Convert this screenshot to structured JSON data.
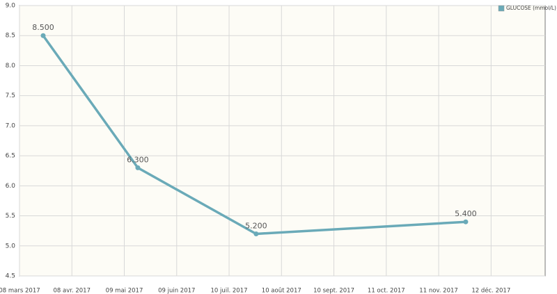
{
  "chart_data": {
    "type": "line",
    "x": [
      "2017-03-22",
      "2017-05-17",
      "2017-07-26",
      "2017-11-27"
    ],
    "series": [
      {
        "name": "GLUCOSE (mmol/L)",
        "color": "#6aaab8",
        "values": [
          8.5,
          6.3,
          5.2,
          5.4
        ],
        "value_labels": [
          "8.500",
          "6.300",
          "5.200",
          "5.400"
        ]
      }
    ],
    "xlim": [
      "2017-03-08",
      "2018-01-13"
    ],
    "xticks": [
      {
        "value": "2017-03-08",
        "label": "08 mars 2017"
      },
      {
        "value": "2017-04-08",
        "label": "08 avr. 2017"
      },
      {
        "value": "2017-05-09",
        "label": "09 mai 2017"
      },
      {
        "value": "2017-06-09",
        "label": "09 juin 2017"
      },
      {
        "value": "2017-07-10",
        "label": "10 juil. 2017"
      },
      {
        "value": "2017-08-10",
        "label": "10 août 2017"
      },
      {
        "value": "2017-09-10",
        "label": "10 sept. 2017"
      },
      {
        "value": "2017-10-11",
        "label": "11 oct. 2017"
      },
      {
        "value": "2017-11-11",
        "label": "11 nov. 2017"
      },
      {
        "value": "2017-12-12",
        "label": "12 déc. 2017"
      }
    ],
    "ylim": [
      4.5,
      9.0
    ],
    "yticks": [
      4.5,
      {
        "value": 5,
        "label": "5.0"
      },
      5.5,
      {
        "value": 6,
        "label": "6.0"
      },
      6.5,
      {
        "value": 7,
        "label": "7.0"
      },
      7.5,
      {
        "value": 8,
        "label": "8.0"
      },
      8.5,
      {
        "value": 9,
        "label": "9.0"
      }
    ],
    "grid": true,
    "legend": "top-right"
  }
}
